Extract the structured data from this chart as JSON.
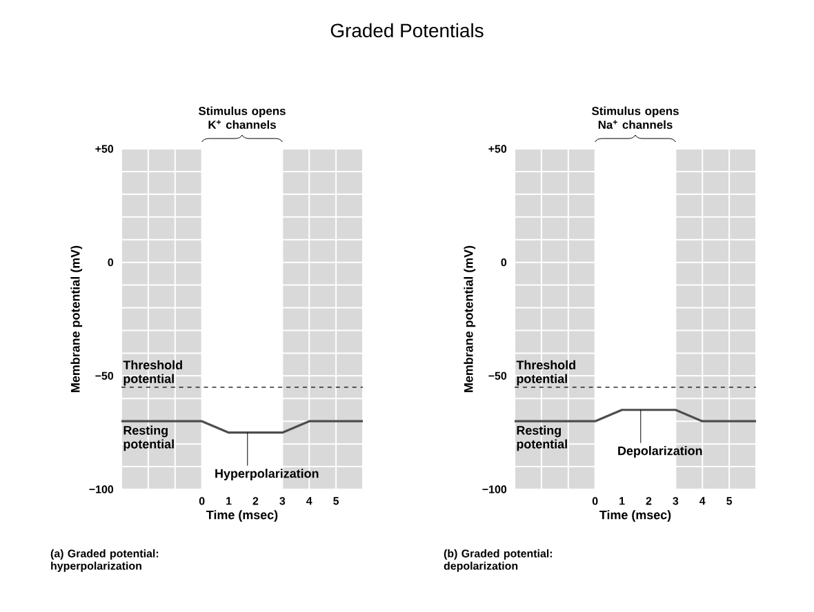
{
  "chart_data": [
    {
      "type": "line",
      "title": "Graded Potentials",
      "xlabel": "Time (msec)",
      "ylabel": "Membrane potential (mV)",
      "x": [
        -3,
        0,
        1,
        3,
        4,
        6
      ],
      "series": [
        {
          "color": "#4d4d4d",
          "values": [
            -70,
            -70,
            -75,
            -75,
            -70,
            -70
          ]
        }
      ],
      "xlim": [
        -3,
        6
      ],
      "ylim": [
        -100,
        50
      ],
      "xticks": [
        {
          "value": -3,
          "label": null
        },
        {
          "value": -2,
          "label": null
        },
        {
          "value": -1,
          "label": null
        },
        0,
        1,
        2,
        3,
        4,
        5,
        {
          "value": 6,
          "label": null
        }
      ],
      "yticks": [
        {
          "value": -100,
          "label": "−100"
        },
        {
          "value": -90,
          "label": null
        },
        {
          "value": -80,
          "label": null
        },
        {
          "value": -70,
          "label": null
        },
        {
          "value": -60,
          "label": null
        },
        {
          "value": -50,
          "label": "−50"
        },
        {
          "value": -40,
          "label": null
        },
        {
          "value": -30,
          "label": null
        },
        {
          "value": -20,
          "label": null
        },
        {
          "value": -10,
          "label": null
        },
        0,
        {
          "value": 10,
          "label": null
        },
        {
          "value": 20,
          "label": null
        },
        {
          "value": 30,
          "label": null
        },
        {
          "value": 40,
          "label": null
        },
        {
          "value": 50,
          "label": "+50"
        }
      ],
      "grid": true,
      "line_style": "solid",
      "marker": "none",
      "bands": [
        {
          "axis": "x",
          "from": 0,
          "to": 3,
          "color": "#ffffff",
          "label": "Stimulus opens K$^{+}$ channels"
        }
      ],
      "ref_lines": [
        {
          "axis": "y",
          "value": -55,
          "label": "Threshold potential",
          "color": "#000000",
          "line_style": "dashed"
        }
      ],
      "annotations": [
        {
          "text": "Resting potential",
          "y": -70
        },
        {
          "text": "Hyperpolarization",
          "x": 1.7,
          "y": -75
        },
        "(a) Graded potential: hyperpolarization"
      ]
    },
    {
      "type": "line",
      "xlabel": "Time (msec)",
      "ylabel": "Membrane potential (mV)",
      "x": [
        -3,
        0,
        1,
        3,
        4,
        6
      ],
      "series": [
        {
          "color": "#4d4d4d",
          "values": [
            -70,
            -70,
            -65,
            -65,
            -70,
            -70
          ]
        }
      ],
      "xlim": [
        -3,
        6
      ],
      "ylim": [
        -100,
        50
      ],
      "xticks": [
        {
          "value": -3,
          "label": null
        },
        {
          "value": -2,
          "label": null
        },
        {
          "value": -1,
          "label": null
        },
        0,
        1,
        2,
        3,
        4,
        5,
        {
          "value": 6,
          "label": null
        }
      ],
      "yticks": [
        {
          "value": -100,
          "label": "−100"
        },
        {
          "value": -90,
          "label": null
        },
        {
          "value": -80,
          "label": null
        },
        {
          "value": -70,
          "label": null
        },
        {
          "value": -60,
          "label": null
        },
        {
          "value": -50,
          "label": "−50"
        },
        {
          "value": -40,
          "label": null
        },
        {
          "value": -30,
          "label": null
        },
        {
          "value": -20,
          "label": null
        },
        {
          "value": -10,
          "label": null
        },
        0,
        {
          "value": 10,
          "label": null
        },
        {
          "value": 20,
          "label": null
        },
        {
          "value": 30,
          "label": null
        },
        {
          "value": 40,
          "label": null
        },
        {
          "value": 50,
          "label": "+50"
        }
      ],
      "grid": true,
      "line_style": "solid",
      "marker": "none",
      "bands": [
        {
          "axis": "x",
          "from": 0,
          "to": 3,
          "color": "#ffffff",
          "label": "Stimulus opens Na$^{+}$ channels"
        }
      ],
      "ref_lines": [
        {
          "axis": "y",
          "value": -55,
          "label": "Threshold potential",
          "color": "#000000",
          "line_style": "dashed"
        }
      ],
      "annotations": [
        {
          "text": "Resting potential",
          "y": -70
        },
        {
          "text": "Depolarization",
          "x": 1.7,
          "y": -65
        },
        "(b) Graded potential: depolarization"
      ]
    }
  ]
}
